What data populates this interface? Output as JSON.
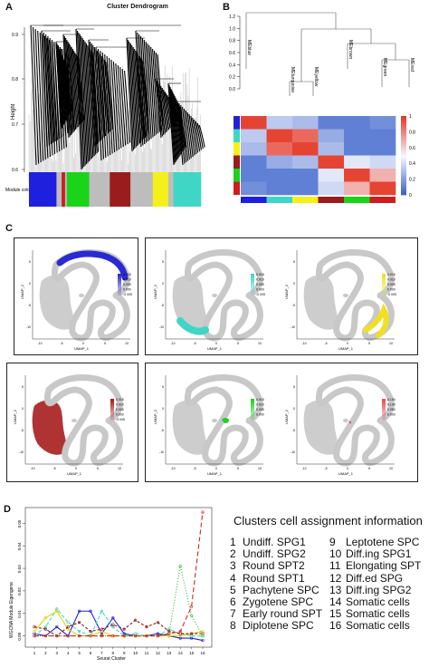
{
  "panels": {
    "a": "A",
    "b": "B",
    "c": "C",
    "d": "D"
  },
  "dendrogram": {
    "title": "Cluster Dendrogram",
    "ylabel": "Height",
    "yticks": [
      "0.9",
      "0.8",
      "0.7",
      "0.6"
    ],
    "module_colors_label": "Module colors",
    "modules": [
      {
        "color": "#1f1fe0",
        "w": 0.16
      },
      {
        "color": "#bdbdbd",
        "w": 0.03
      },
      {
        "color": "#d01c1c",
        "w": 0.02
      },
      {
        "color": "#bdbdbd",
        "w": 0.01
      },
      {
        "color": "#19d419",
        "w": 0.13
      },
      {
        "color": "#bdbdbd",
        "w": 0.12
      },
      {
        "color": "#9b1c1c",
        "w": 0.12
      },
      {
        "color": "#bdbdbd",
        "w": 0.13
      },
      {
        "color": "#f5f01a",
        "w": 0.09
      },
      {
        "color": "#bdbdbd",
        "w": 0.03
      },
      {
        "color": "#3fd6c6",
        "w": 0.16
      }
    ]
  },
  "eigengene_tree": {
    "yticks": [
      "1.2",
      "1.0",
      "0.8",
      "0.6",
      "0.4",
      "0.2",
      "0.0"
    ],
    "leaves": [
      "MEblue",
      "MEturquoise",
      "MEyellow",
      "MEbrown",
      "MEgreen",
      "MEred"
    ]
  },
  "heatmap": {
    "row_colors": [
      "#1f1fe0",
      "#3fd6c6",
      "#f5f01a",
      "#9b1c1c",
      "#19d419",
      "#d01c1c"
    ],
    "matrix": [
      [
        1.0,
        0.35,
        0.3,
        0.1,
        0.1,
        0.15
      ],
      [
        0.35,
        1.0,
        0.9,
        0.25,
        0.1,
        0.1
      ],
      [
        0.3,
        0.9,
        1.0,
        0.3,
        0.1,
        0.1
      ],
      [
        0.1,
        0.25,
        0.3,
        1.0,
        0.45,
        0.4
      ],
      [
        0.1,
        0.1,
        0.1,
        0.45,
        1.0,
        0.7
      ],
      [
        0.15,
        0.1,
        0.1,
        0.4,
        0.7,
        1.0
      ]
    ],
    "scale_ticks": [
      "1",
      "0.8",
      "0.6",
      "0.4",
      "0.2",
      "0"
    ]
  },
  "umap": {
    "xlabel": "UMAP_1",
    "ylabel": "UMAP_2",
    "xticks": [
      "-10",
      "-5",
      "0",
      "5",
      "10"
    ],
    "yticks": [
      "5",
      "0",
      "-5",
      "-10"
    ],
    "panels": [
      {
        "color": "#2a2ad4",
        "region": "top",
        "scale": [
          "0.015",
          "0.010",
          "0.005",
          "0.000",
          "-0.005"
        ]
      },
      {
        "color": "#3fd6c6",
        "region": "bottom",
        "scale": [
          "0.015",
          "0.010",
          "0.005",
          "0.000",
          "-0.005"
        ]
      },
      {
        "color": "#f0e020",
        "region": "right",
        "scale": [
          "0.015",
          "0.010",
          "0.005",
          "0.000",
          "-0.005"
        ]
      },
      {
        "color": "#a81e1e",
        "region": "left",
        "scale": [
          "0.015",
          "0.010",
          "0.005",
          "0.000",
          "-0.005"
        ]
      },
      {
        "color": "#22d022",
        "region": "spot",
        "scale": [
          "0.015",
          "0.010",
          "0.005",
          "0.000"
        ]
      },
      {
        "color": "#e05050",
        "region": "tiny",
        "scale": [
          "0.150",
          "0.100",
          "0.050",
          "0.000"
        ]
      }
    ]
  },
  "chart_data": {
    "type": "line",
    "xlabel": "Seurat Cluster",
    "ylabel": "WGCNA Module Eigengene",
    "x": [
      1,
      2,
      3,
      4,
      5,
      6,
      7,
      8,
      9,
      10,
      11,
      12,
      13,
      14,
      15,
      16
    ],
    "yticks": [
      "0.05",
      "0.04",
      "0.03",
      "0.02",
      "0.01",
      "0.00"
    ],
    "ylim": [
      -0.005,
      0.057
    ],
    "series": [
      {
        "color": "#1f1fe0",
        "dash": "",
        "values": [
          0.001,
          0.0,
          0.004,
          0.0,
          0.011,
          0.011,
          0.001,
          0.008,
          0.001,
          0.0,
          0.0,
          0.001,
          0.0,
          -0.001,
          -0.001,
          -0.002
        ]
      },
      {
        "color": "#3fd6c6",
        "dash": "4,2",
        "values": [
          0.0,
          0.004,
          0.012,
          0.006,
          0.002,
          0.0,
          0.011,
          0.004,
          0.0,
          0.001,
          0.0,
          0.0,
          0.003,
          0.001,
          0.0,
          0.0
        ]
      },
      {
        "color": "#e6d000",
        "dash": "",
        "values": [
          0.002,
          0.008,
          0.011,
          0.003,
          0.0,
          0.0,
          0.002,
          0.0,
          0.0,
          0.0,
          0.0,
          0.0,
          0.0,
          0.0,
          0.001,
          0.002
        ]
      },
      {
        "color": "#8b1a1a",
        "dash": "3,2",
        "values": [
          0.004,
          0.003,
          0.0,
          0.004,
          0.006,
          0.002,
          0.003,
          0.005,
          0.003,
          0.007,
          0.004,
          0.006,
          0.002,
          0.001,
          0.001,
          0.001
        ]
      },
      {
        "color": "#22c022",
        "dash": "1,2",
        "values": [
          0.0,
          0.0,
          0.0,
          0.0,
          0.0,
          0.0,
          0.0,
          0.0,
          0.0,
          0.0,
          0.0,
          0.0,
          0.001,
          0.031,
          0.009,
          0.0
        ]
      },
      {
        "color": "#e02020",
        "dash": "5,3",
        "values": [
          0.0,
          0.0,
          0.0,
          0.0,
          0.0,
          0.0,
          0.0,
          0.0,
          0.0,
          0.0,
          0.0,
          0.0,
          0.001,
          0.002,
          0.013,
          0.055
        ]
      }
    ]
  },
  "cluster_info": {
    "title": "Clusters cell assignment information",
    "left": [
      {
        "n": "1",
        "label": "Undiff. SPG1"
      },
      {
        "n": "2",
        "label": "Undiff. SPG2"
      },
      {
        "n": "3",
        "label": "Round SPT2"
      },
      {
        "n": "4",
        "label": "Round SPT1"
      },
      {
        "n": "5",
        "label": "Pachytene SPC"
      },
      {
        "n": "6",
        "label": "Zygotene SPC"
      },
      {
        "n": "7",
        "label": "Early round SPT"
      },
      {
        "n": "8",
        "label": "Diplotene SPC"
      }
    ],
    "right": [
      {
        "n": "9",
        "label": "Leptotene SPC"
      },
      {
        "n": "10",
        "label": "Diff.ing SPG1"
      },
      {
        "n": "11",
        "label": "Elongating SPT"
      },
      {
        "n": "12",
        "label": "Diff.ed SPG"
      },
      {
        "n": "13",
        "label": "Diff.ing SPG2"
      },
      {
        "n": "14",
        "label": "Somatic cells"
      },
      {
        "n": "15",
        "label": "Somatic cells"
      },
      {
        "n": "16",
        "label": "Somatic cells"
      }
    ]
  }
}
